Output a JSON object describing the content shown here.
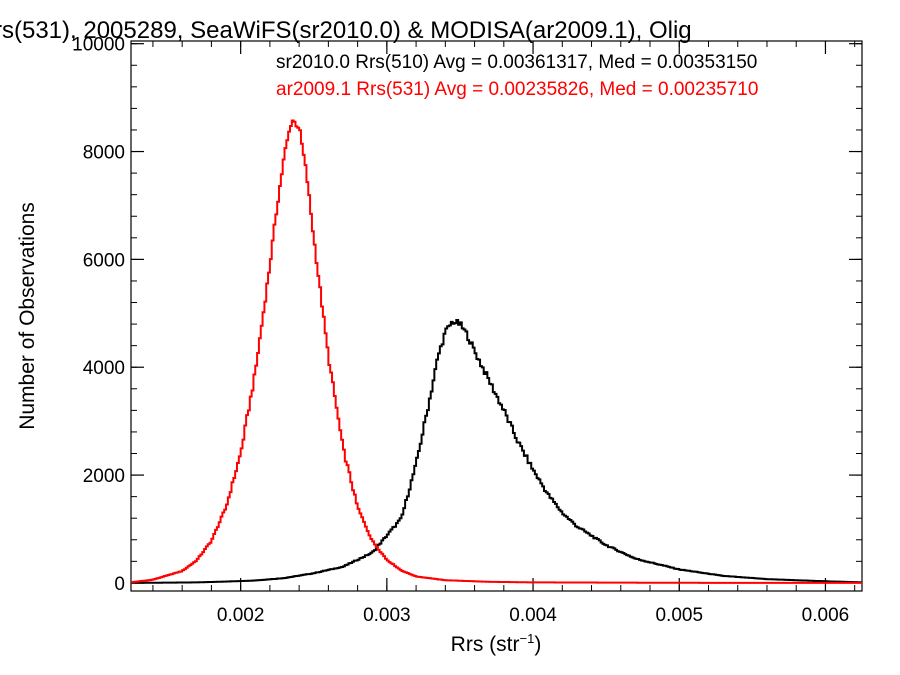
{
  "chart_data": {
    "type": "line",
    "title": "rs(531), 2005289, SeaWiFS(sr2010.0) & MODISA(ar2009.1), Olig",
    "xlabel": "Rrs (str",
    "xlabel_superscript": "−1",
    "xlabel_suffix": ")",
    "ylabel": "Number of Observations",
    "xlim": [
      0.00125,
      0.00625
    ],
    "ylim": [
      -150,
      10050
    ],
    "xticks": [
      0.002,
      0.003,
      0.004,
      0.005,
      0.006
    ],
    "xtick_labels": [
      "0.002",
      "0.003",
      "0.004",
      "0.005",
      "0.006"
    ],
    "yticks": [
      0,
      2000,
      4000,
      6000,
      8000,
      10000
    ],
    "ytick_labels": [
      "0",
      "2000",
      "4000",
      "6000",
      "8000",
      "10000"
    ],
    "step": true,
    "series": [
      {
        "name": "sr2010.0 Rrs(510)",
        "color": "#000000",
        "legend": "sr2010.0 Rrs(510) Avg = 0.00361317, Med = 0.00353150",
        "x": [
          0.00125,
          0.0015,
          0.0017,
          0.0019,
          0.0021,
          0.0023,
          0.0025,
          0.0027,
          0.0029,
          0.0031,
          0.0032,
          0.0033,
          0.00335,
          0.0034,
          0.00345,
          0.0035,
          0.00355,
          0.0036,
          0.0037,
          0.0038,
          0.0039,
          0.004,
          0.0041,
          0.0042,
          0.0043,
          0.0045,
          0.0047,
          0.005,
          0.0053,
          0.0056,
          0.006,
          0.00625
        ],
        "y": [
          0,
          5,
          10,
          25,
          45,
          90,
          180,
          300,
          560,
          1200,
          2200,
          3500,
          4200,
          4650,
          4850,
          4800,
          4600,
          4300,
          3750,
          3200,
          2600,
          2100,
          1650,
          1300,
          1050,
          700,
          450,
          250,
          130,
          70,
          30,
          10
        ]
      },
      {
        "name": "ar2009.1 Rrs(531)",
        "color": "#ff0000",
        "legend": "ar2009.1 Rrs(531) Avg = 0.00235826, Med = 0.00235710",
        "x": [
          0.00125,
          0.0014,
          0.0016,
          0.0017,
          0.0018,
          0.0019,
          0.002,
          0.0021,
          0.0022,
          0.00225,
          0.0023,
          0.00235,
          0.0024,
          0.00245,
          0.0025,
          0.0026,
          0.0027,
          0.0028,
          0.0029,
          0.003,
          0.0031,
          0.0032,
          0.0034,
          0.0037,
          0.004,
          0.005,
          0.00625
        ],
        "y": [
          10,
          60,
          220,
          420,
          780,
          1400,
          2400,
          3900,
          5900,
          7000,
          7950,
          8600,
          8450,
          7600,
          6400,
          4200,
          2500,
          1400,
          780,
          430,
          230,
          120,
          50,
          20,
          10,
          2,
          0
        ]
      }
    ]
  }
}
